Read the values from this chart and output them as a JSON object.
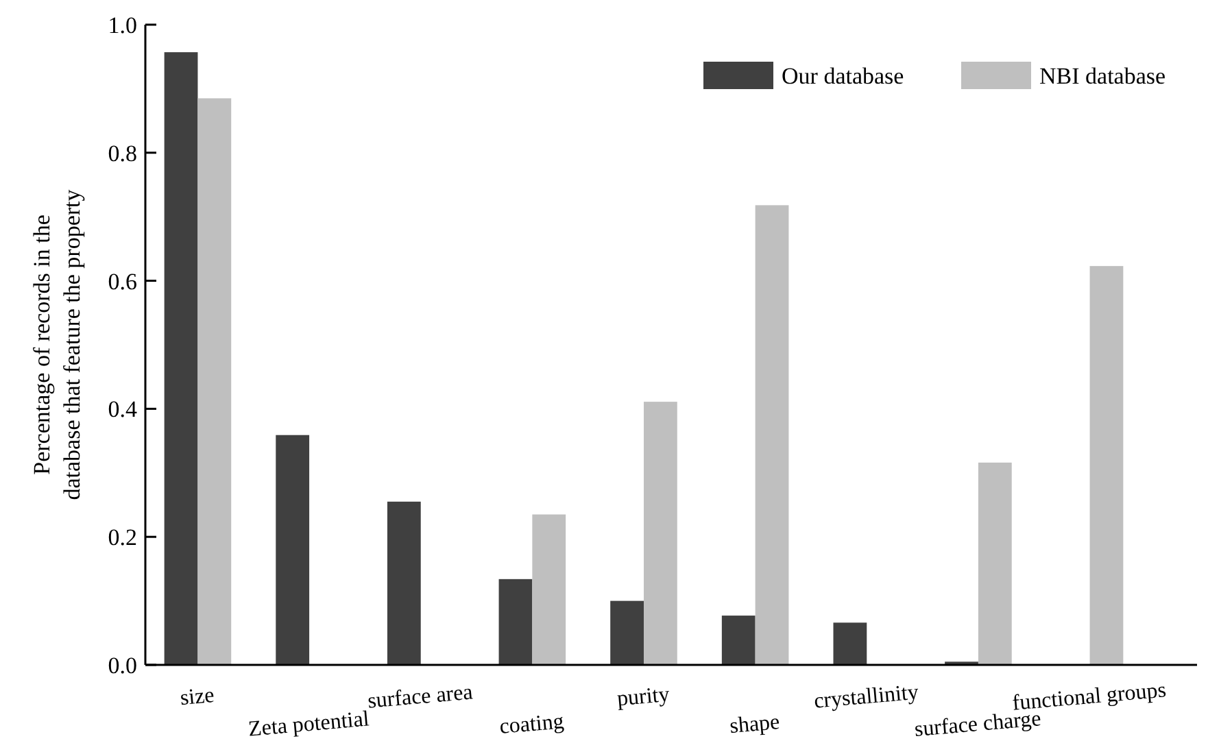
{
  "chart_data": {
    "type": "bar",
    "ylabel": "Percentage of records in the\ndatabase that feature the property",
    "categories": [
      "size",
      "Zeta potential",
      "surface area",
      "coating",
      "purity",
      "shape",
      "crystallinity",
      "surface charge",
      "functional groups"
    ],
    "series": [
      {
        "name": "Our database",
        "color": "#404040",
        "values": [
          0.957,
          0.359,
          0.255,
          0.134,
          0.1,
          0.077,
          0.066,
          0.005,
          null
        ]
      },
      {
        "name": "NBI database",
        "color": "#bfbfbf",
        "values": [
          0.885,
          null,
          null,
          0.235,
          0.411,
          0.718,
          null,
          0.316,
          0.623
        ]
      }
    ],
    "ylim": [
      0,
      1
    ],
    "yticks": [
      {
        "value": 0,
        "label": "0.0"
      },
      {
        "value": 0.2,
        "label": "0.2"
      },
      {
        "value": 0.4,
        "label": "0.4"
      },
      {
        "value": 0.6,
        "label": "0.6"
      },
      {
        "value": 0.8,
        "label": "0.8"
      },
      {
        "value": 1,
        "label": "1.0"
      }
    ],
    "grid": false,
    "legend": "top right"
  }
}
